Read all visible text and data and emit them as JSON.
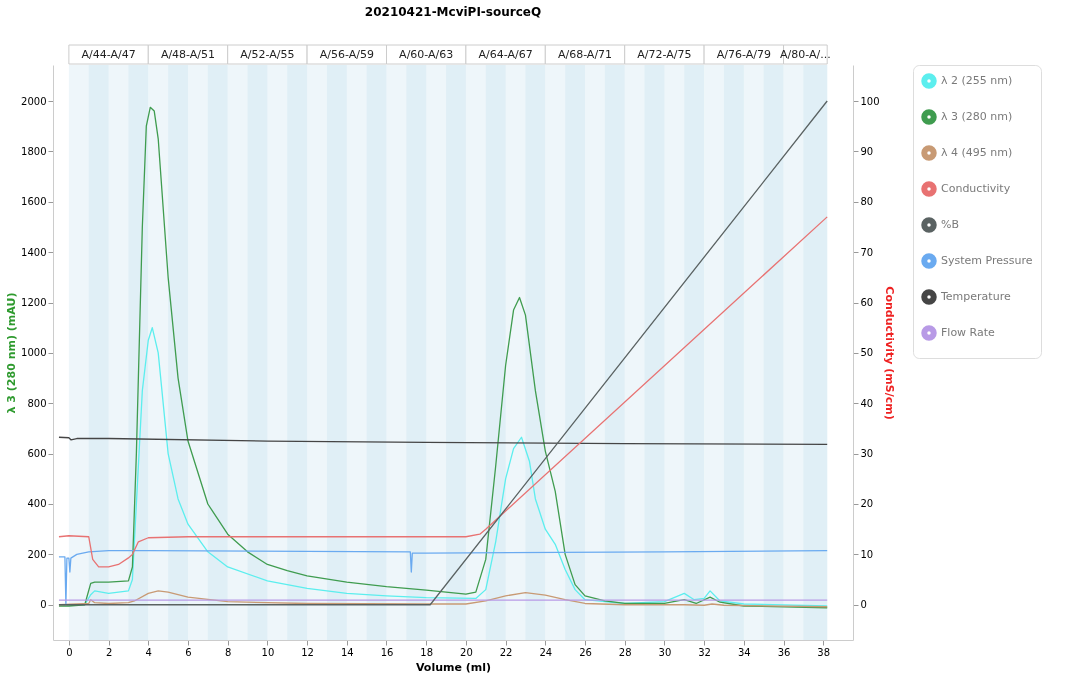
{
  "chart_data": {
    "type": "line",
    "title": "20210421-McviPI-sourceQ",
    "xlabel": "Volume (ml)",
    "ylabel": "λ 3 (280 nm) (mAU)",
    "y2label": "Conductivity (mS/cm)",
    "xlim": [
      -0.8,
      39.5
    ],
    "xticks": [
      0,
      2,
      4,
      6,
      8,
      10,
      12,
      14,
      16,
      18,
      20,
      22,
      24,
      26,
      28,
      30,
      32,
      34,
      36,
      38
    ],
    "ylim": [
      -140,
      2143
    ],
    "yticks": [
      0,
      200,
      400,
      600,
      800,
      1000,
      1200,
      1400,
      1600,
      1800,
      2000
    ],
    "y2lim": [
      -7,
      107.15
    ],
    "y2ticks": [
      0,
      10,
      20,
      30,
      40,
      50,
      60,
      70,
      80,
      90,
      100
    ],
    "grid": false,
    "legend": "top right",
    "bands": [
      {
        "axis": "x",
        "from": 0,
        "to": 4,
        "label": "A/44-A/47",
        "color": "#eef6fa"
      },
      {
        "axis": "x",
        "from": 4,
        "to": 8,
        "label": "A/48-A/51",
        "color": "#eef6fa"
      },
      {
        "axis": "x",
        "from": 8,
        "to": 12,
        "label": "A/52-A/55",
        "color": "#eef6fa"
      },
      {
        "axis": "x",
        "from": 12,
        "to": 16,
        "label": "A/56-A/59",
        "color": "#eef6fa"
      },
      {
        "axis": "x",
        "from": 16,
        "to": 20,
        "label": "A/60-A/63",
        "color": "#eef6fa"
      },
      {
        "axis": "x",
        "from": 20,
        "to": 24,
        "label": "A/64-A/67",
        "color": "#eef6fa"
      },
      {
        "axis": "x",
        "from": 24,
        "to": 28,
        "label": "A/68-A/71",
        "color": "#eef6fa"
      },
      {
        "axis": "x",
        "from": 28,
        "to": 32,
        "label": "A/72-A/75",
        "color": "#eef6fa"
      },
      {
        "axis": "x",
        "from": 32,
        "to": 36,
        "label": "A/76-A/79",
        "color": "#eef6fa"
      },
      {
        "axis": "x",
        "from": 36,
        "to": 38.2,
        "label": "A/80-A/...",
        "color": "#eef6fa"
      },
      {
        "axis": "x",
        "from": 1,
        "to": 2,
        "color": "#e0eff6"
      },
      {
        "axis": "x",
        "from": 3,
        "to": 4,
        "color": "#e0eff6"
      },
      {
        "axis": "x",
        "from": 5,
        "to": 6,
        "color": "#e0eff6"
      },
      {
        "axis": "x",
        "from": 7,
        "to": 8,
        "color": "#e0eff6"
      },
      {
        "axis": "x",
        "from": 9,
        "to": 10,
        "color": "#e0eff6"
      },
      {
        "axis": "x",
        "from": 11,
        "to": 12,
        "color": "#e0eff6"
      },
      {
        "axis": "x",
        "from": 13,
        "to": 14,
        "color": "#e0eff6"
      },
      {
        "axis": "x",
        "from": 15,
        "to": 16,
        "color": "#e0eff6"
      },
      {
        "axis": "x",
        "from": 17,
        "to": 18,
        "color": "#e0eff6"
      },
      {
        "axis": "x",
        "from": 19,
        "to": 20,
        "color": "#e0eff6"
      },
      {
        "axis": "x",
        "from": 21,
        "to": 22,
        "color": "#e0eff6"
      },
      {
        "axis": "x",
        "from": 23,
        "to": 24,
        "color": "#e0eff6"
      },
      {
        "axis": "x",
        "from": 25,
        "to": 26,
        "color": "#e0eff6"
      },
      {
        "axis": "x",
        "from": 27,
        "to": 28,
        "color": "#e0eff6"
      },
      {
        "axis": "x",
        "from": 29,
        "to": 30,
        "color": "#e0eff6"
      },
      {
        "axis": "x",
        "from": 31,
        "to": 32,
        "color": "#e0eff6"
      },
      {
        "axis": "x",
        "from": 33,
        "to": 34,
        "color": "#e0eff6"
      },
      {
        "axis": "x",
        "from": 35,
        "to": 36,
        "color": "#e0eff6"
      },
      {
        "axis": "x",
        "from": 37,
        "to": 38.2,
        "color": "#e0eff6"
      }
    ],
    "series": [
      {
        "name": "λ 2 (255 nm)",
        "color": "#5ceeee",
        "x": [
          -0.5,
          0.8,
          1.1,
          1.3,
          2,
          3,
          3.2,
          3.4,
          3.7,
          4,
          4.2,
          4.5,
          5,
          5.5,
          6,
          7,
          8,
          10,
          12,
          14,
          16,
          18,
          20.5,
          21,
          21.5,
          22,
          22.4,
          22.8,
          23.2,
          23.5,
          24,
          24.5,
          25,
          25.5,
          26,
          28,
          30,
          31,
          31.5,
          32,
          32.3,
          32.8,
          34,
          38.2
        ],
        "values": [
          0,
          0,
          40,
          55,
          45,
          55,
          100,
          400,
          850,
          1050,
          1100,
          1000,
          600,
          420,
          320,
          210,
          150,
          95,
          65,
          45,
          35,
          28,
          25,
          60,
          250,
          500,
          620,
          665,
          570,
          420,
          300,
          240,
          140,
          60,
          20,
          5,
          12,
          45,
          20,
          25,
          55,
          15,
          3,
          -5
        ]
      },
      {
        "name": "λ 3 (280 nm)",
        "color": "#3f9c4f",
        "x": [
          -0.5,
          0,
          0.8,
          1.1,
          1.3,
          2,
          3,
          3.2,
          3.4,
          3.7,
          3.9,
          4.1,
          4.3,
          4.5,
          5,
          5.5,
          6,
          7,
          8,
          9,
          10,
          11,
          12,
          14,
          16,
          18,
          19,
          20,
          20.5,
          21,
          21.5,
          22,
          22.4,
          22.7,
          23,
          23.5,
          24,
          24.5,
          25,
          25.5,
          26,
          27,
          28,
          30,
          31,
          31.6,
          32.3,
          32.8,
          34,
          38.2
        ],
        "values": [
          -5,
          -5,
          0,
          85,
          90,
          90,
          95,
          150,
          600,
          1500,
          1900,
          1975,
          1960,
          1850,
          1300,
          900,
          650,
          400,
          280,
          210,
          160,
          135,
          115,
          90,
          72,
          58,
          50,
          42,
          50,
          180,
          550,
          950,
          1170,
          1220,
          1150,
          850,
          610,
          450,
          200,
          80,
          35,
          15,
          5,
          5,
          20,
          5,
          30,
          10,
          -5,
          -12
        ]
      },
      {
        "name": "λ 4 (495 nm)",
        "color": "#c89a74",
        "x": [
          -0.5,
          1,
          1.1,
          1.3,
          2,
          3,
          3.3,
          4,
          4.5,
          5,
          6,
          8,
          12,
          18,
          20,
          21,
          22,
          23,
          24,
          25,
          26,
          28,
          31,
          32,
          32.4,
          33,
          38.2
        ],
        "values": [
          0,
          5,
          20,
          8,
          5,
          8,
          15,
          45,
          55,
          50,
          30,
          12,
          5,
          3,
          3,
          15,
          35,
          48,
          38,
          20,
          5,
          0,
          0,
          -2,
          3,
          -2,
          -8
        ]
      },
      {
        "name": "Conductivity",
        "color": "#e87272",
        "axis": "y2",
        "x": [
          -0.5,
          0,
          1,
          1.2,
          1.5,
          2,
          2.5,
          3,
          3.2,
          3.5,
          4,
          6,
          10,
          18,
          20,
          20.7,
          21,
          38.2
        ],
        "values": [
          13.5,
          13.7,
          13.5,
          9,
          7.5,
          7.5,
          8,
          9.3,
          10,
          12.5,
          13.3,
          13.5,
          13.5,
          13.5,
          13.5,
          14,
          15,
          77
        ]
      },
      {
        "name": "%B",
        "color": "#5a6262",
        "axis": "y2",
        "x": [
          -0.5,
          18.2,
          38.2
        ],
        "values": [
          0,
          0,
          100
        ]
      },
      {
        "name": "System Pressure",
        "color": "#6aaaf0",
        "x": [
          -0.5,
          -0.2,
          -0.15,
          -0.1,
          0,
          0.05,
          0.1,
          0.4,
          1,
          2,
          4,
          17.2,
          17.25,
          17.3,
          18,
          30,
          38.2
        ],
        "values": [
          190,
          190,
          0,
          185,
          185,
          130,
          185,
          200,
          210,
          215,
          215,
          210,
          130,
          205,
          205,
          210,
          215
        ]
      },
      {
        "name": "Temperature",
        "color": "#454545",
        "x": [
          -0.5,
          0,
          0.1,
          0.4,
          2,
          10,
          18,
          28,
          38.2
        ],
        "values": [
          665,
          663,
          655,
          660,
          660,
          650,
          645,
          640,
          637
        ]
      },
      {
        "name": "Flow Rate",
        "color": "#b89ae6",
        "x": [
          -0.5,
          38.2
        ],
        "values": [
          18,
          18
        ]
      }
    ]
  }
}
